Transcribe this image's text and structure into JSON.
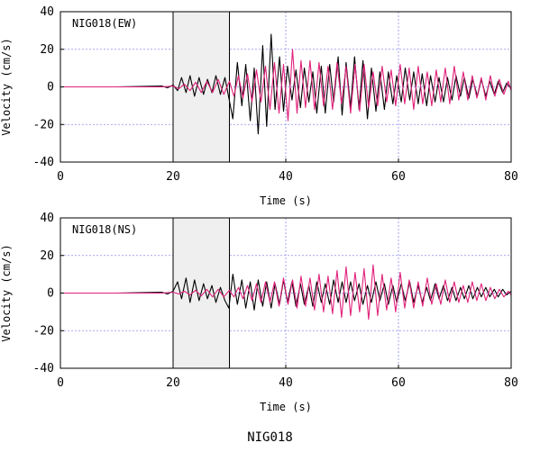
{
  "figure_title": "NIG018",
  "chart_data": [
    {
      "type": "line",
      "title": "NIG018(EW)",
      "xlabel": "Time (s)",
      "ylabel": "Velocity (cm/s)",
      "xlim": [
        0,
        80
      ],
      "ylim": [
        -40,
        40
      ],
      "xticks": [
        0,
        20,
        40,
        60,
        80
      ],
      "yticks": [
        -40,
        -20,
        0,
        20,
        40
      ],
      "grid": true,
      "highlight_window": [
        20,
        30
      ],
      "series": [
        {
          "color": "#000000",
          "x": [
            0,
            10,
            18,
            19,
            20,
            20.8,
            21.5,
            22.3,
            23,
            23.8,
            24.6,
            25.4,
            26.1,
            26.9,
            27.6,
            28.4,
            29.2,
            29.9,
            30.6,
            31.4,
            32.2,
            32.9,
            33.7,
            34.4,
            35.1,
            35.9,
            36.6,
            37.4,
            38.1,
            38.9,
            39.6,
            40.3,
            41.1,
            41.8,
            42.6,
            43.3,
            44.1,
            44.8,
            45.5,
            46.3,
            47,
            47.8,
            48.5,
            49.3,
            50,
            50.7,
            51.5,
            52.2,
            53,
            53.7,
            54.5,
            55.2,
            56,
            56.7,
            57.5,
            58.2,
            59,
            59.7,
            60.5,
            61.2,
            62,
            62.7,
            63.5,
            64.2,
            65,
            65.7,
            66.5,
            67.2,
            68,
            68.7,
            69.5,
            70.2,
            71,
            71.7,
            72.5,
            73.2,
            74,
            74.7,
            75.5,
            76.2,
            77,
            77.7,
            78.5,
            79.2,
            80
          ],
          "y": [
            0,
            0,
            0.5,
            -0.5,
            1,
            -2,
            5,
            -3,
            6,
            -5,
            5,
            -4,
            4,
            -3,
            6,
            -4,
            5,
            -6,
            -17,
            13,
            -10,
            12,
            -18,
            10,
            -25,
            22,
            -21,
            28,
            -12,
            16,
            -13,
            11,
            -7,
            9,
            -11,
            10,
            -8,
            8,
            -14,
            11,
            -14,
            12,
            -8,
            16,
            -15,
            13,
            -11,
            16,
            -12,
            14,
            -17,
            10,
            -13,
            8,
            -12,
            8,
            -9,
            6,
            -8,
            10,
            -7,
            8,
            -9,
            7,
            -10,
            6,
            -8,
            5,
            -8,
            5,
            -7,
            6,
            -5,
            5,
            -6,
            4,
            -5,
            4,
            -5,
            3,
            -4,
            3,
            -3,
            2,
            -1
          ]
        },
        {
          "color": "#e0217a",
          "x": [
            0,
            10,
            18,
            20,
            21,
            22,
            23,
            24,
            25,
            26,
            27,
            28,
            29,
            30,
            30.8,
            31.6,
            32.4,
            33.2,
            34,
            34.8,
            35.6,
            36.4,
            37.2,
            38,
            38.8,
            39.6,
            40.4,
            41.2,
            42,
            42.7,
            43.5,
            44.3,
            45.1,
            45.9,
            46.7,
            47.5,
            48.3,
            49.1,
            49.9,
            50.7,
            51.5,
            52.3,
            53.1,
            53.9,
            54.7,
            55.5,
            56.3,
            57.1,
            57.9,
            58.7,
            59.5,
            60.3,
            61.1,
            61.9,
            62.7,
            63.5,
            64.3,
            65.1,
            65.9,
            66.7,
            67.5,
            68.3,
            69.1,
            69.9,
            70.7,
            71.5,
            72.3,
            73.1,
            73.9,
            74.7,
            75.5,
            76.3,
            77.1,
            77.9,
            78.7,
            79.5,
            80
          ],
          "y": [
            0,
            0,
            0,
            0.5,
            -1,
            1.5,
            -2,
            2.5,
            -3,
            3,
            -3,
            4,
            -4,
            3,
            -5,
            6,
            -6,
            7,
            -8,
            9,
            -8,
            11,
            -12,
            13,
            -14,
            12,
            -18,
            20,
            -14,
            14,
            -11,
            14,
            -12,
            13,
            -10,
            11,
            -12,
            13,
            -9,
            11,
            -14,
            12,
            -13,
            12,
            -11,
            8,
            -10,
            11,
            -8,
            9,
            -10,
            12,
            -9,
            10,
            -12,
            11,
            -9,
            8,
            -10,
            9,
            -8,
            10,
            -9,
            11,
            -7,
            8,
            -7,
            6,
            -6,
            5,
            -7,
            6,
            -5,
            4,
            -4,
            3,
            -2
          ]
        }
      ]
    },
    {
      "type": "line",
      "title": "NIG018(NS)",
      "xlabel": "Time (s)",
      "ylabel": "Velocity (cm/s)",
      "xlim": [
        0,
        80
      ],
      "ylim": [
        -40,
        40
      ],
      "xticks": [
        0,
        20,
        40,
        60,
        80
      ],
      "yticks": [
        -40,
        -20,
        0,
        20,
        40
      ],
      "grid": true,
      "highlight_window": [
        20,
        30
      ],
      "series": [
        {
          "color": "#000000",
          "x": [
            0,
            10,
            18,
            19,
            20,
            20.8,
            21.5,
            22.3,
            23,
            23.8,
            24.6,
            25.4,
            26.1,
            26.9,
            27.6,
            28.4,
            29.2,
            29.9,
            30.6,
            31.4,
            32.2,
            32.9,
            33.7,
            34.4,
            35.1,
            35.9,
            36.6,
            37.4,
            38.1,
            38.9,
            39.6,
            40.3,
            41.1,
            41.8,
            42.6,
            43.3,
            44.1,
            44.8,
            45.5,
            46.3,
            47,
            47.8,
            48.5,
            49.3,
            50,
            50.7,
            51.5,
            52.2,
            53,
            53.7,
            54.5,
            55.2,
            56,
            56.7,
            57.5,
            58.2,
            59,
            59.7,
            60.5,
            61.2,
            62,
            62.7,
            63.5,
            64.2,
            65,
            65.7,
            66.5,
            67.2,
            68,
            68.7,
            69.5,
            70.2,
            71,
            71.7,
            72.5,
            73.2,
            74,
            74.7,
            75.5,
            76.2,
            77,
            77.7,
            78.5,
            79.2,
            80
          ],
          "y": [
            0,
            0,
            0.5,
            -0.5,
            1,
            6,
            -3,
            8,
            -5,
            7,
            -4,
            5,
            -3,
            4,
            -5,
            3,
            -4,
            -8,
            10,
            -6,
            7,
            -8,
            6,
            -9,
            7,
            -7,
            6,
            -8,
            5,
            -6,
            7,
            -5,
            6,
            -7,
            5,
            -6,
            4,
            -7,
            6,
            -5,
            5,
            -6,
            7,
            -5,
            6,
            -5,
            6,
            -4,
            5,
            -6,
            4,
            -5,
            6,
            -4,
            5,
            -6,
            4,
            -5,
            5,
            -4,
            6,
            -5,
            4,
            -5,
            3,
            -4,
            5,
            -3,
            4,
            -4,
            3,
            -4,
            3,
            -3,
            4,
            -3,
            3,
            -2,
            3,
            -2,
            2,
            -2,
            2,
            -1,
            1
          ]
        },
        {
          "color": "#e0217a",
          "x": [
            0,
            10,
            18,
            20,
            21,
            22,
            23,
            24,
            25,
            26,
            27,
            28,
            29,
            30,
            30.8,
            31.6,
            32.4,
            33.2,
            34,
            34.8,
            35.6,
            36.4,
            37.2,
            38,
            38.8,
            39.6,
            40.4,
            41.2,
            42,
            42.7,
            43.5,
            44.3,
            45.1,
            45.9,
            46.7,
            47.5,
            48.3,
            49.1,
            49.9,
            50.7,
            51.5,
            52.3,
            53.1,
            53.9,
            54.7,
            55.5,
            56.3,
            57.1,
            57.9,
            58.7,
            59.5,
            60.3,
            61.1,
            61.9,
            62.7,
            63.5,
            64.3,
            65.1,
            65.9,
            66.7,
            67.5,
            68.3,
            69.1,
            69.9,
            70.7,
            71.5,
            72.3,
            73.1,
            73.9,
            74.7,
            75.5,
            76.3,
            77.1,
            77.9,
            78.7,
            79.5,
            80
          ],
          "y": [
            0,
            0,
            0,
            0.5,
            -0.5,
            1,
            -1,
            1.5,
            -1.5,
            2,
            -2,
            2,
            -2,
            1.5,
            -2,
            3,
            -3,
            4,
            -4,
            5,
            -5,
            6,
            -5,
            6,
            -7,
            8,
            -6,
            7,
            -8,
            9,
            -7,
            8,
            -9,
            10,
            -10,
            9,
            -11,
            12,
            -13,
            14,
            -12,
            11,
            -10,
            13,
            -14,
            15,
            -12,
            10,
            -9,
            8,
            -10,
            11,
            -8,
            7,
            -8,
            6,
            -7,
            8,
            -6,
            5,
            -6,
            7,
            -5,
            6,
            -5,
            4,
            -5,
            6,
            -4,
            5,
            -4,
            3,
            -3,
            2,
            -2,
            1,
            -1
          ]
        }
      ]
    }
  ]
}
